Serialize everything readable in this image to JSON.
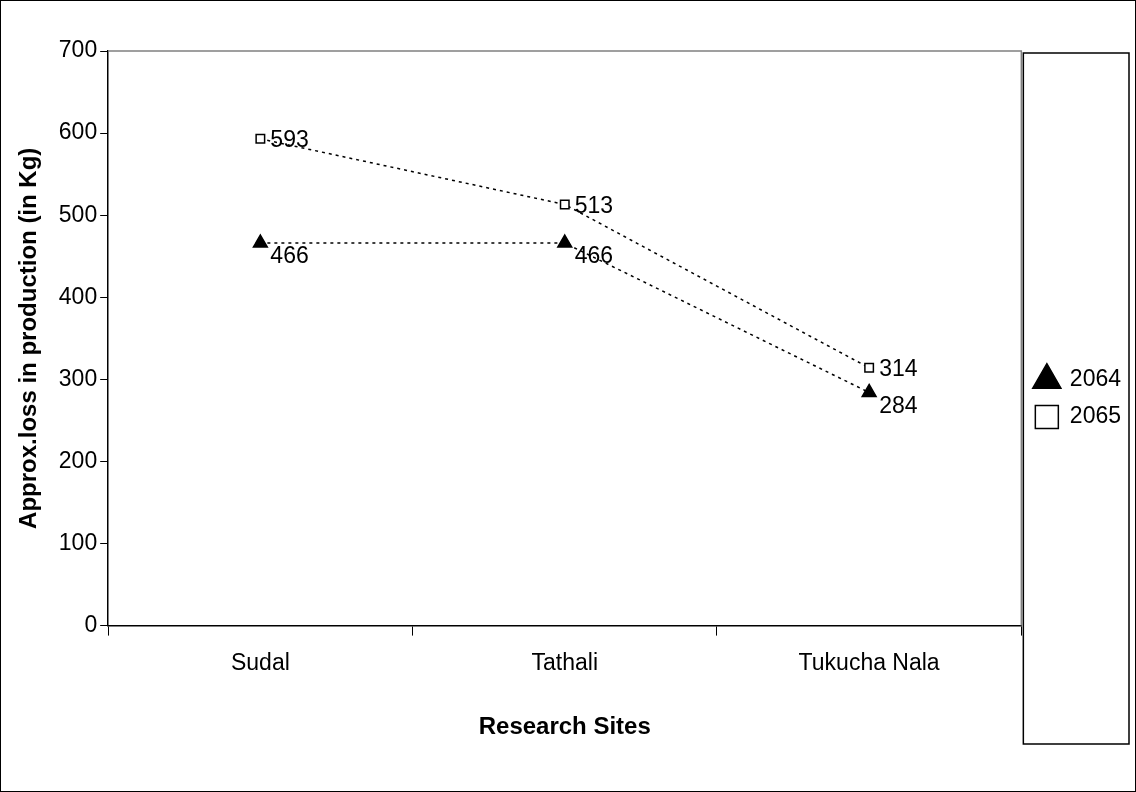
{
  "chart_data": {
    "type": "line",
    "xlabel": "Research Sites",
    "ylabel": "Approx.loss in production (in Kg)",
    "categories": [
      "Sudal",
      "Tathali",
      "Tukucha Nala"
    ],
    "series": [
      {
        "name": "2064",
        "color": "#000000",
        "marker": "triangle",
        "values": [
          466,
          466,
          284
        ]
      },
      {
        "name": "2065",
        "color": "#000000",
        "marker": "square",
        "values": [
          593,
          513,
          314
        ]
      }
    ],
    "ylim": [
      0,
      700
    ],
    "yticks": [
      0,
      100,
      200,
      300,
      400,
      500,
      600,
      700
    ],
    "grid": false,
    "legend": "right",
    "line_style": "dotted",
    "data_labels": true
  }
}
